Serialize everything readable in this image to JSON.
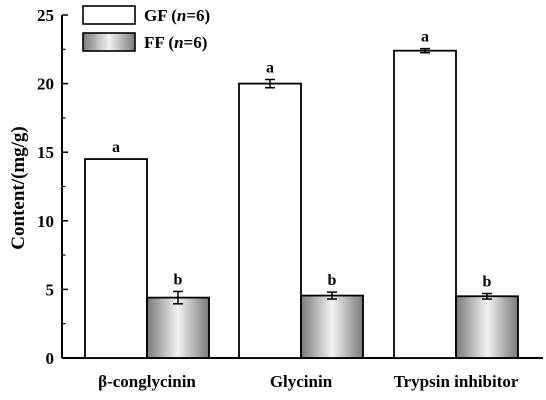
{
  "chart_data": {
    "type": "bar",
    "categories": [
      "β-conglycinin",
      "Glycinin",
      "Trypsin inhibitor"
    ],
    "ylabel": "Content/(mg/g)",
    "xlabel": "",
    "ylim": [
      0,
      25
    ],
    "yticks": [
      0,
      5,
      10,
      15,
      20,
      25
    ],
    "grid": false,
    "legend": "top-left",
    "series": [
      {
        "name": "GF (n=6)",
        "legend_parts": [
          "GF (",
          "n",
          "=6)"
        ],
        "style": "white",
        "values": [
          14.5,
          20.0,
          22.4
        ],
        "errors": [
          0.0,
          0.3,
          0.15
        ],
        "letters": [
          "a",
          "a",
          "a"
        ]
      },
      {
        "name": "FF (n=6)",
        "legend_parts": [
          "FF (",
          "n",
          "=6)"
        ],
        "style": "gradient-gray",
        "values": [
          4.4,
          4.55,
          4.5
        ],
        "errors": [
          0.45,
          0.25,
          0.2
        ],
        "letters": [
          "b",
          "b",
          "b"
        ]
      }
    ],
    "colors": {
      "bar_stroke": "#000000",
      "gf_fill": "#ffffff",
      "ff_gradient": [
        "#7a7a7a",
        "#f2f2f2",
        "#7a7a7a"
      ]
    }
  }
}
